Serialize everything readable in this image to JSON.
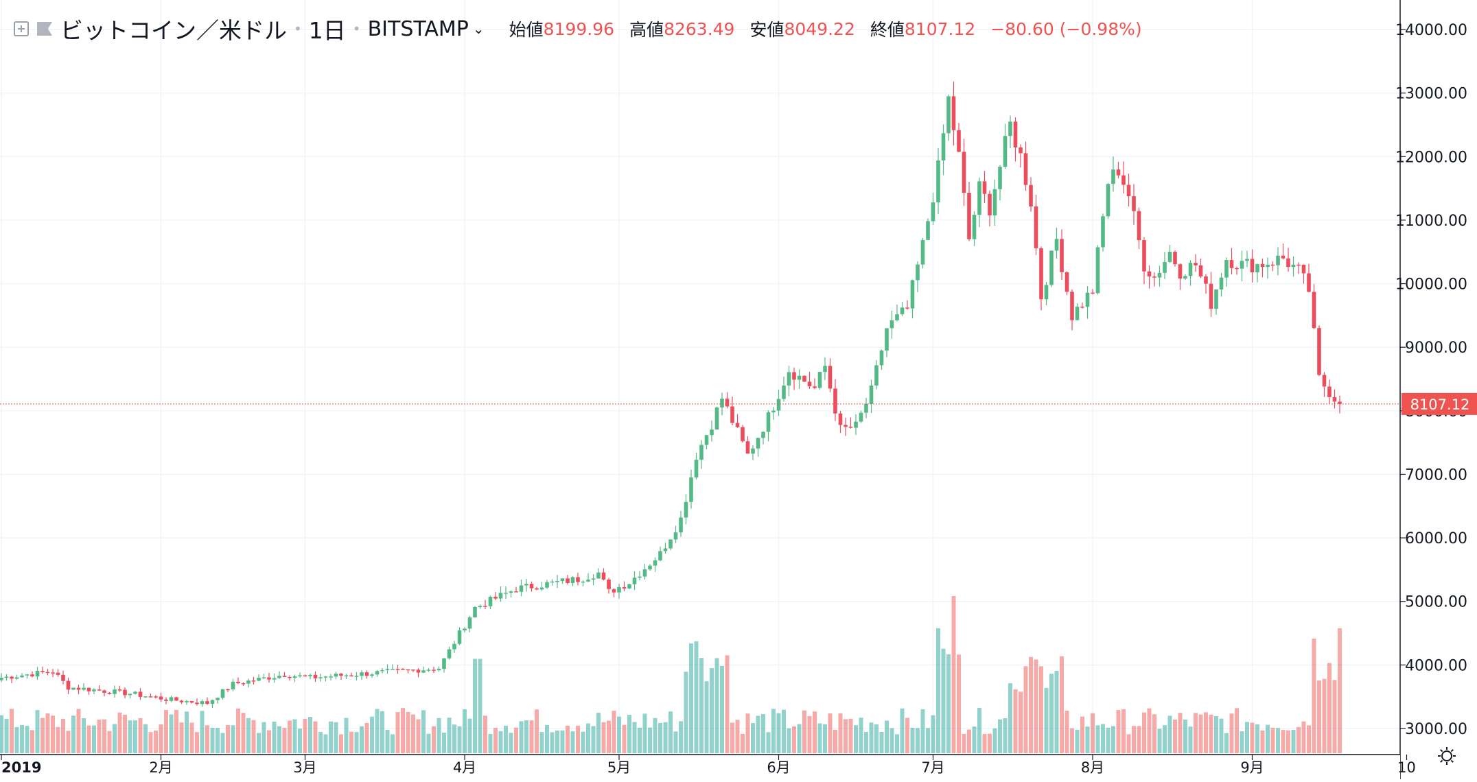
{
  "header": {
    "symbol": "ビットコイン／米ドル",
    "interval": "1日",
    "exchange": "BITSTAMP",
    "open_label": "始値",
    "open": "8199.96",
    "high_label": "高値",
    "high": "8263.49",
    "low_label": "安値",
    "low": "8049.22",
    "close_label": "終値",
    "close": "8107.12",
    "change": "−80.60 (−0.98%)"
  },
  "icons": {
    "add": "plus-square-icon",
    "flag": "flag-icon",
    "chevron": "chevron-down-icon",
    "settings": "gear-icon"
  },
  "colors": {
    "up": "#26a69a",
    "down": "#ef5350",
    "up_candle": "#53b987",
    "down_candle": "#eb4d5c",
    "price_tag": "#ef5350"
  },
  "chart_data": {
    "type": "candlestick",
    "title": "ビットコイン／米ドル · 1日 · BITSTAMP",
    "y_ticks": [
      "14000.00",
      "13000.00",
      "12000.00",
      "11000.00",
      "10000.00",
      "9000.00",
      "8000.00",
      "7000.00",
      "6000.00",
      "5000.00",
      "4000.00",
      "3000.00"
    ],
    "y_range": [
      2600,
      14400
    ],
    "x_ticks": [
      {
        "label": "2019",
        "day": 0
      },
      {
        "label": "2月",
        "day": 31
      },
      {
        "label": "3月",
        "day": 59
      },
      {
        "label": "4月",
        "day": 90
      },
      {
        "label": "5月",
        "day": 120
      },
      {
        "label": "6月",
        "day": 151
      },
      {
        "label": "7月",
        "day": 181
      },
      {
        "label": "8月",
        "day": 212
      },
      {
        "label": "9月",
        "day": 243
      },
      {
        "label": "10",
        "day": 273
      }
    ],
    "last_price": "8107.12",
    "anchors": [
      [
        0,
        3800
      ],
      [
        10,
        3900
      ],
      [
        13,
        3650
      ],
      [
        25,
        3550
      ],
      [
        33,
        3450
      ],
      [
        40,
        3400
      ],
      [
        45,
        3700
      ],
      [
        55,
        3850
      ],
      [
        60,
        3800
      ],
      [
        85,
        3950
      ],
      [
        92,
        4900
      ],
      [
        100,
        5200
      ],
      [
        112,
        5350
      ],
      [
        116,
        5450
      ],
      [
        118,
        5150
      ],
      [
        122,
        5300
      ],
      [
        128,
        5750
      ],
      [
        132,
        6300
      ],
      [
        135,
        7300
      ],
      [
        138,
        7800
      ],
      [
        140,
        8200
      ],
      [
        145,
        7300
      ],
      [
        149,
        7900
      ],
      [
        153,
        8650
      ],
      [
        158,
        8350
      ],
      [
        160,
        8700
      ],
      [
        163,
        7700
      ],
      [
        166,
        7750
      ],
      [
        169,
        8300
      ],
      [
        172,
        9300
      ],
      [
        176,
        9600
      ],
      [
        179,
        10600
      ],
      [
        182,
        11800
      ],
      [
        184,
        12900
      ],
      [
        186,
        12000
      ],
      [
        188,
        10700
      ],
      [
        190,
        11500
      ],
      [
        192,
        11200
      ],
      [
        196,
        12500
      ],
      [
        198,
        12000
      ],
      [
        200,
        11300
      ],
      [
        202,
        9800
      ],
      [
        205,
        10700
      ],
      [
        208,
        9500
      ],
      [
        212,
        9900
      ],
      [
        215,
        11600
      ],
      [
        217,
        11800
      ],
      [
        219,
        11400
      ],
      [
        222,
        10300
      ],
      [
        224,
        10100
      ],
      [
        227,
        10500
      ],
      [
        229,
        10200
      ],
      [
        232,
        10300
      ],
      [
        235,
        9700
      ],
      [
        238,
        10400
      ],
      [
        241,
        10300
      ],
      [
        244,
        10300
      ],
      [
        249,
        10400
      ],
      [
        252,
        10200
      ],
      [
        254,
        9900
      ],
      [
        256,
        8500
      ],
      [
        258,
        8300
      ],
      [
        260,
        8107
      ]
    ],
    "volume_note": "volume bars (relative) shown at bottom"
  }
}
